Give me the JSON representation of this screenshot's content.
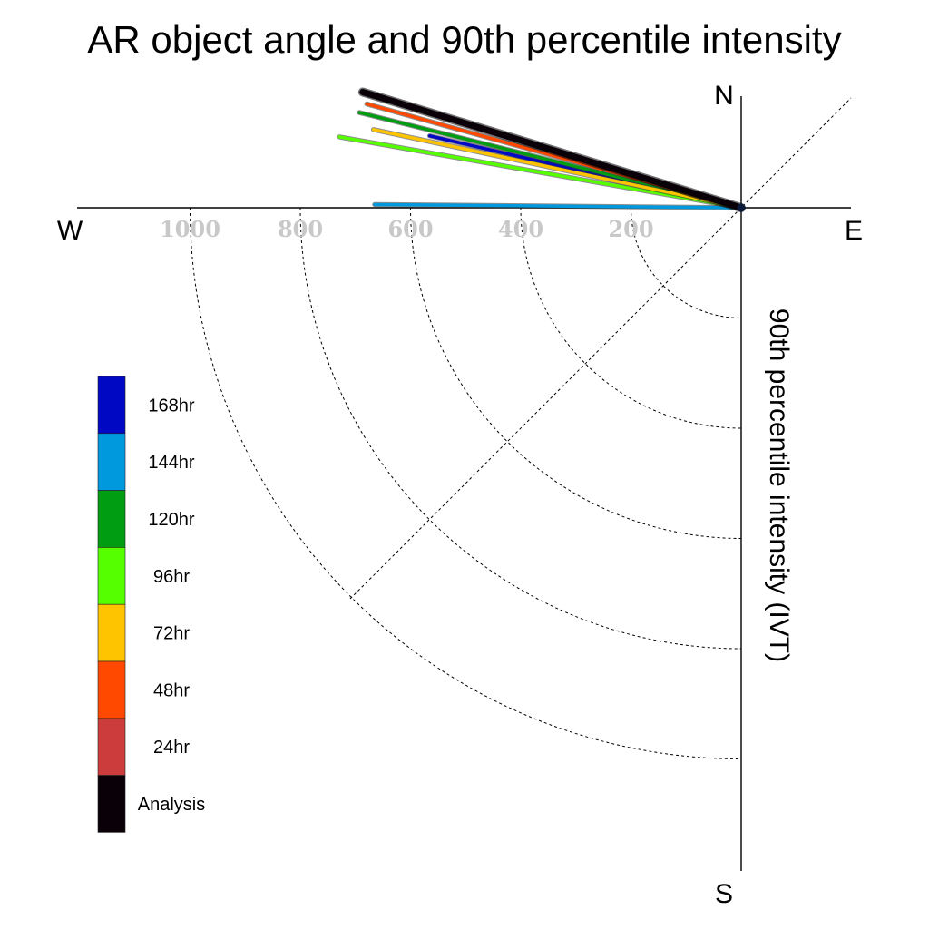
{
  "chart_data": {
    "type": "polar-vector",
    "title": "AR object angle and 90th percentile intensity",
    "radial_label": "90th percentile intensity (IVT)",
    "directions": {
      "north": "N",
      "south": "S",
      "east": "E",
      "west": "W"
    },
    "radial_ticks": [
      200,
      400,
      600,
      800,
      1000
    ],
    "radial_max": 1200,
    "series": [
      {
        "name": "Analysis",
        "color": "#0a0008",
        "angle_deg": 163,
        "magnitude": 718
      },
      {
        "name": "24hr",
        "color": "#cc3c3c",
        "angle_deg": 163,
        "magnitude": 700
      },
      {
        "name": "48hr",
        "color": "#ff4800",
        "angle_deg": 164.5,
        "magnitude": 705
      },
      {
        "name": "72hr",
        "color": "#ffc400",
        "angle_deg": 168,
        "magnitude": 682
      },
      {
        "name": "96hr",
        "color": "#55ff00",
        "angle_deg": 170,
        "magnitude": 740
      },
      {
        "name": "120hr",
        "color": "#009c12",
        "angle_deg": 166,
        "magnitude": 714
      },
      {
        "name": "144hr",
        "color": "#0099dd",
        "angle_deg": 179.5,
        "magnitude": 665
      },
      {
        "name": "168hr",
        "color": "#0008c4",
        "angle_deg": 167,
        "magnitude": 580
      }
    ]
  }
}
